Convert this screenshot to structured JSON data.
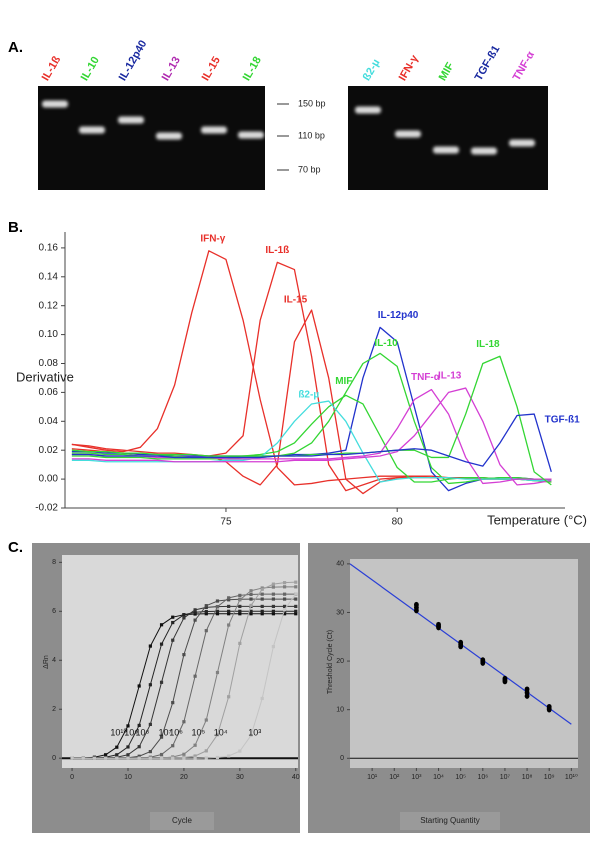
{
  "panel_labels": [
    "A.",
    "B.",
    "C."
  ],
  "gel": {
    "left_lanes": [
      {
        "label": "IL-1ß",
        "color": "#e8302a"
      },
      {
        "label": "IL-10",
        "color": "#33d633"
      },
      {
        "label": "IL-12p40",
        "color": "#1a2aa0"
      },
      {
        "label": "IL-13",
        "color": "#b02ab0"
      },
      {
        "label": "IL-15",
        "color": "#e8302a"
      },
      {
        "label": "IL-18",
        "color": "#33d633"
      }
    ],
    "markers": [
      "150 bp",
      "110 bp",
      "70 bp"
    ],
    "right_lanes": [
      {
        "label": "ß2-µ",
        "color": "#44dddd"
      },
      {
        "label": "IFN-γ",
        "color": "#e8302a"
      },
      {
        "label": "MIF",
        "color": "#33d633"
      },
      {
        "label": "TGF-ß1",
        "color": "#1a2aa0"
      },
      {
        "label": "TNF-α",
        "color": "#d43fd4"
      }
    ]
  },
  "chart_data": [
    {
      "type": "line",
      "ylabel": "Derivative",
      "xlabel": "Temperature (°C)",
      "x": [
        70.5,
        71,
        71.5,
        72,
        72.5,
        73,
        73.5,
        74,
        74.5,
        75,
        75.5,
        76,
        76.5,
        77,
        77.5,
        78,
        78.5,
        79,
        79.5,
        80,
        80.5,
        81,
        81.5,
        82,
        82.5,
        83,
        83.5,
        84,
        84.5
      ],
      "xlim": [
        70.3,
        84.9
      ],
      "ylim": [
        -0.02,
        0.171
      ],
      "xticks": [
        75,
        80
      ],
      "yticks": [
        -0.02,
        {
          "value": 0,
          "label": "0.00"
        },
        0.02,
        0.04,
        0.06,
        0.08,
        {
          "value": 0.1,
          "label": "0.10"
        },
        0.12,
        0.14,
        0.16
      ],
      "series": [
        {
          "name": "IFN-γ",
          "color": "#e8302a",
          "values": [
            0.024,
            0.022,
            0.02,
            0.019,
            0.022,
            0.035,
            0.065,
            0.115,
            0.158,
            0.152,
            0.11,
            0.055,
            0.008,
            -0.004,
            -0.003,
            -0.001,
            0.0,
            0.001,
            0.002,
            0.002,
            0.002,
            0.001,
            0.001,
            0.001,
            0.001,
            0.0,
            0.0,
            0.0,
            0.0
          ]
        },
        {
          "name": "IL-1ß",
          "color": "#e8302a",
          "values": [
            0.021,
            0.02,
            0.019,
            0.018,
            0.017,
            0.017,
            0.016,
            0.016,
            0.016,
            0.018,
            0.03,
            0.11,
            0.15,
            0.145,
            0.085,
            0.01,
            -0.008,
            -0.004,
            0.0,
            0.001,
            0.001,
            0.001,
            0.001,
            0.001,
            0.0,
            0.0,
            0.0,
            -0.001,
            -0.002
          ]
        },
        {
          "name": "IL-15",
          "color": "#e8302a",
          "values": [
            0.024,
            0.023,
            0.021,
            0.02,
            0.019,
            0.018,
            0.018,
            0.017,
            0.016,
            0.012,
            0.002,
            -0.004,
            0.01,
            0.095,
            0.117,
            0.07,
            0.0,
            -0.01,
            -0.002,
            0.001,
            0.002,
            0.002,
            0.001,
            0.001,
            0.0,
            0.0,
            0.0,
            0.0,
            0.0
          ]
        },
        {
          "name": "IL-12p40",
          "color": "#2233cc",
          "values": [
            0.019,
            0.019,
            0.018,
            0.018,
            0.017,
            0.017,
            0.016,
            0.016,
            0.016,
            0.016,
            0.016,
            0.016,
            0.016,
            0.017,
            0.017,
            0.018,
            0.02,
            0.07,
            0.105,
            0.095,
            0.05,
            0.005,
            -0.008,
            -0.003,
            0.0,
            0.001,
            0.001,
            0.0,
            -0.001
          ]
        },
        {
          "name": "IL-10",
          "color": "#33d633",
          "values": [
            0.016,
            0.016,
            0.015,
            0.015,
            0.015,
            0.014,
            0.014,
            0.014,
            0.014,
            0.014,
            0.015,
            0.015,
            0.016,
            0.018,
            0.025,
            0.04,
            0.06,
            0.08,
            0.087,
            0.078,
            0.04,
            0.008,
            -0.003,
            -0.002,
            0.0,
            0.001,
            0.001,
            0.0,
            -0.001
          ]
        },
        {
          "name": "MIF",
          "color": "#33d633",
          "values": [
            0.018,
            0.018,
            0.017,
            0.017,
            0.016,
            0.016,
            0.016,
            0.015,
            0.015,
            0.015,
            0.016,
            0.017,
            0.019,
            0.025,
            0.038,
            0.05,
            0.058,
            0.052,
            0.03,
            0.008,
            -0.002,
            -0.002,
            0.0,
            0.001,
            0.001,
            0.0,
            0.0,
            -0.001,
            -0.002
          ]
        },
        {
          "name": "ß2-µ",
          "color": "#44dddd",
          "values": [
            0.013,
            0.013,
            0.012,
            0.012,
            0.012,
            0.012,
            0.012,
            0.012,
            0.012,
            0.013,
            0.013,
            0.015,
            0.025,
            0.04,
            0.052,
            0.054,
            0.04,
            0.018,
            -0.002,
            0.0,
            0.001,
            0.001,
            0.001,
            0.0,
            0.0,
            0.0,
            0.0,
            -0.001,
            -0.001
          ]
        },
        {
          "name": "TNF-α",
          "color": "#d43fd4",
          "values": [
            0.017,
            0.017,
            0.016,
            0.016,
            0.016,
            0.015,
            0.015,
            0.015,
            0.015,
            0.014,
            0.014,
            0.014,
            0.014,
            0.014,
            0.014,
            0.014,
            0.015,
            0.016,
            0.018,
            0.035,
            0.055,
            0.062,
            0.045,
            0.015,
            -0.003,
            -0.002,
            0.0,
            0.0,
            0.0
          ]
        },
        {
          "name": "IL-13",
          "color": "#d43fd4",
          "values": [
            0.014,
            0.014,
            0.013,
            0.013,
            0.013,
            0.013,
            0.012,
            0.012,
            0.012,
            0.012,
            0.012,
            0.012,
            0.012,
            0.013,
            0.013,
            0.013,
            0.014,
            0.015,
            0.016,
            0.019,
            0.03,
            0.045,
            0.06,
            0.063,
            0.04,
            0.01,
            -0.004,
            -0.003,
            -0.001
          ]
        },
        {
          "name": "IL-18",
          "color": "#33d633",
          "values": [
            0.02,
            0.019,
            0.019,
            0.018,
            0.018,
            0.017,
            0.017,
            0.017,
            0.016,
            0.016,
            0.016,
            0.016,
            0.016,
            0.016,
            0.017,
            0.017,
            0.018,
            0.018,
            0.019,
            0.02,
            0.02,
            0.015,
            0.015,
            0.045,
            0.08,
            0.085,
            0.05,
            0.005,
            -0.004
          ]
        },
        {
          "name": "TGF-ß1",
          "color": "#2233cc",
          "values": [
            0.017,
            0.017,
            0.016,
            0.016,
            0.016,
            0.016,
            0.015,
            0.015,
            0.015,
            0.015,
            0.015,
            0.015,
            0.016,
            0.016,
            0.016,
            0.017,
            0.017,
            0.018,
            0.019,
            0.02,
            0.021,
            0.02,
            0.016,
            0.012,
            0.009,
            0.025,
            0.044,
            0.045,
            0.005
          ]
        }
      ]
    },
    {
      "type": "line",
      "markers": true,
      "ylabel": "ΔRn",
      "xlabel": "Cycle",
      "x": [
        0,
        2,
        4,
        6,
        8,
        10,
        12,
        14,
        16,
        18,
        20,
        22,
        24,
        26,
        28,
        30,
        32,
        34,
        36,
        38,
        40
      ],
      "xlim": [
        -1.8,
        40.4
      ],
      "ylim": [
        -0.4,
        8.3
      ],
      "xticks": [
        0,
        10,
        20,
        30,
        40
      ],
      "yticks": [
        0,
        2,
        4,
        6,
        8
      ],
      "series": [
        {
          "name": "10¹⁰",
          "color": "#111111",
          "values": [
            0.0,
            0.01,
            0.04,
            0.14,
            0.45,
            1.32,
            2.95,
            4.58,
            5.45,
            5.76,
            5.86,
            5.89,
            5.9,
            5.9,
            5.9,
            5.9,
            5.9,
            5.9,
            5.9,
            5.9,
            5.9
          ]
        },
        {
          "name": "10⁹",
          "color": "#242424",
          "values": [
            0.0,
            0.0,
            0.01,
            0.04,
            0.14,
            0.46,
            1.34,
            3.0,
            4.66,
            5.54,
            5.86,
            5.96,
            5.99,
            6.0,
            6.0,
            6.0,
            6.0,
            6.0,
            6.0,
            6.0,
            6.0
          ]
        },
        {
          "name": "10⁸",
          "color": "#363636",
          "values": [
            0.0,
            0.0,
            0.0,
            0.01,
            0.04,
            0.14,
            0.47,
            1.38,
            3.1,
            4.82,
            5.73,
            6.06,
            6.16,
            6.19,
            6.2,
            6.2,
            6.2,
            6.2,
            6.2,
            6.2,
            6.2
          ]
        },
        {
          "name": "10⁷",
          "color": "#4c4c4c",
          "values": [
            0.0,
            0.0,
            0.0,
            0.0,
            0.01,
            0.02,
            0.08,
            0.27,
            0.86,
            2.27,
            4.23,
            5.64,
            6.23,
            6.42,
            6.47,
            6.49,
            6.5,
            6.5,
            6.5,
            6.5,
            6.5
          ]
        },
        {
          "name": "10⁶",
          "color": "#666666",
          "values": [
            0.0,
            0.0,
            0.0,
            0.0,
            0.0,
            0.0,
            0.01,
            0.04,
            0.15,
            0.51,
            1.49,
            3.35,
            5.21,
            6.19,
            6.55,
            6.65,
            6.69,
            6.7,
            6.7,
            6.7,
            6.7
          ]
        },
        {
          "name": "10⁵",
          "color": "#808080",
          "values": [
            0.0,
            0.0,
            0.0,
            0.0,
            0.0,
            0.0,
            0.0,
            0.0,
            0.01,
            0.05,
            0.16,
            0.53,
            1.56,
            3.5,
            5.44,
            6.47,
            6.84,
            6.95,
            6.99,
            7.0,
            7.0
          ]
        },
        {
          "name": "10⁴",
          "color": "#a0a0a0",
          "values": [
            0.0,
            0.0,
            0.0,
            0.0,
            0.0,
            0.0,
            0.0,
            0.0,
            0.0,
            0.01,
            0.03,
            0.09,
            0.3,
            0.96,
            2.51,
            4.69,
            6.24,
            6.9,
            7.11,
            7.17,
            7.19
          ]
        },
        {
          "name": "10³",
          "color": "#c4c4c4",
          "values": [
            0.0,
            0.0,
            0.0,
            0.0,
            0.0,
            0.0,
            0.0,
            0.0,
            0.0,
            0.0,
            0.0,
            0.0,
            0.01,
            0.03,
            0.09,
            0.29,
            0.93,
            2.44,
            4.56,
            6.07,
            6.71
          ]
        }
      ]
    },
    {
      "type": "scatter",
      "log_x": true,
      "ylabel": "Threshold Cycle (Ct)",
      "xlabel": "Starting Quantity",
      "x": [
        1000.0,
        1000.0,
        1000.0,
        10000.0,
        10000.0,
        10000.0,
        100000.0,
        100000.0,
        100000.0,
        1000000.0,
        1000000.0,
        1000000.0,
        10000000.0,
        10000000.0,
        10000000.0,
        100000000.0,
        100000000.0,
        100000000.0,
        1000000000.0,
        1000000000.0,
        1000000000.0
      ],
      "values": [
        30.4,
        31.0,
        31.6,
        26.9,
        27.2,
        27.5,
        23.0,
        23.4,
        23.8,
        19.6,
        19.9,
        20.2,
        15.8,
        16.1,
        16.4,
        12.8,
        13.5,
        14.2,
        10.0,
        10.3,
        10.6
      ],
      "color": "#000000",
      "trendline": {
        "x": [
          1,
          10000000000.0
        ],
        "values": [
          40,
          7
        ],
        "color": "#2a3fd6"
      },
      "xlim": [
        1,
        20000000000.0
      ],
      "ylim": [
        -2,
        41
      ],
      "xticks": [
        {
          "value": 10,
          "label": "10¹"
        },
        {
          "value": 100,
          "label": "10²"
        },
        {
          "value": 1000,
          "label": "10³"
        },
        {
          "value": 10000,
          "label": "10⁴"
        },
        {
          "value": 100000,
          "label": "10⁵"
        },
        {
          "value": 1000000,
          "label": "10⁶"
        },
        {
          "value": 10000000,
          "label": "10⁷"
        },
        {
          "value": 100000000,
          "label": "10⁸"
        },
        {
          "value": 1000000000,
          "label": "10⁹"
        },
        {
          "value": 10000000000,
          "label": "10¹⁰"
        }
      ],
      "yticks": [
        0,
        10,
        20,
        30,
        40
      ]
    }
  ]
}
